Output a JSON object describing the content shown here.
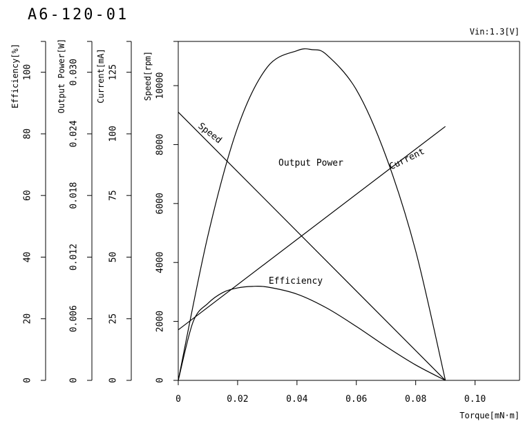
{
  "chart_data": {
    "type": "line",
    "title": "A6-120-01",
    "condition": "Vin:1.3[V]",
    "xlabel": "Torque[mN·m]",
    "x_ticks": [
      "0",
      "0.02",
      "0.04",
      "0.06",
      "0.08",
      "0.10"
    ],
    "xlim": [
      0,
      0.115
    ],
    "y_axes": [
      {
        "key": "efficiency",
        "label": "Efficiency[%]",
        "min": 0,
        "max": 110,
        "ticks": [
          "0",
          "20",
          "40",
          "60",
          "80",
          "100"
        ],
        "tick_values": [
          0,
          20,
          40,
          60,
          80,
          100
        ]
      },
      {
        "key": "power",
        "label": "Output Power[W]",
        "min": 0,
        "max": 0.033,
        "ticks": [
          "0",
          "0.006",
          "0.012",
          "0.018",
          "0.024",
          "0.030"
        ],
        "tick_values": [
          0,
          0.006,
          0.012,
          0.018,
          0.024,
          0.03
        ]
      },
      {
        "key": "current",
        "label": "Current[mA]",
        "min": 0,
        "max": 137.5,
        "ticks": [
          "0",
          "25",
          "50",
          "75",
          "100",
          "125"
        ],
        "tick_values": [
          0,
          25,
          50,
          75,
          100,
          125
        ]
      },
      {
        "key": "speed",
        "label": "Speed[rpm]",
        "min": 0,
        "max": 11500,
        "ticks": [
          "0",
          "2000",
          "4000",
          "6000",
          "8000",
          "10000"
        ],
        "tick_values": [
          0,
          2000,
          4000,
          6000,
          8000,
          10000
        ]
      }
    ],
    "series": [
      {
        "name": "Speed",
        "axis": "speed",
        "x": [
          0,
          0.09
        ],
        "y": [
          9100,
          0
        ]
      },
      {
        "name": "Current",
        "axis": "current",
        "x": [
          0,
          0.09
        ],
        "y": [
          20.5,
          103
        ]
      },
      {
        "name": "Output Power",
        "axis": "power",
        "x": [
          0,
          0.01,
          0.02,
          0.03,
          0.04,
          0.045,
          0.05,
          0.06,
          0.07,
          0.08,
          0.09
        ],
        "y": [
          0,
          0.0141,
          0.0246,
          0.0305,
          0.0321,
          0.0322,
          0.0317,
          0.0283,
          0.0218,
          0.0126,
          0
        ]
      },
      {
        "name": "Efficiency",
        "axis": "efficiency",
        "x": [
          0,
          0.005,
          0.01,
          0.015,
          0.02,
          0.025,
          0.03,
          0.04,
          0.05,
          0.06,
          0.07,
          0.08,
          0.09
        ],
        "y": [
          0,
          19,
          25,
          28.5,
          30,
          30.5,
          30.3,
          28,
          23.5,
          17.5,
          11,
          5,
          0
        ]
      }
    ],
    "grid": false
  }
}
